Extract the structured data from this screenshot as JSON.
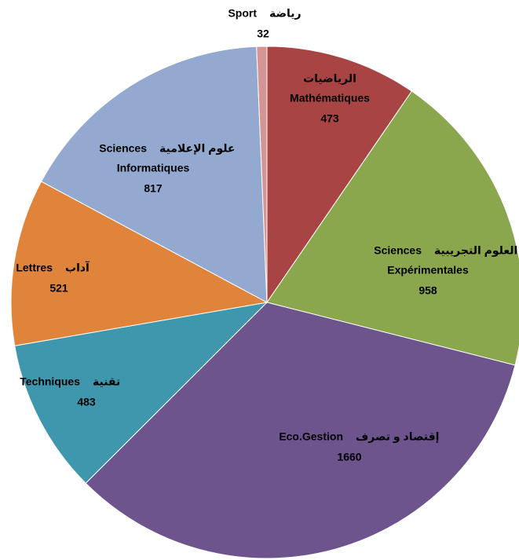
{
  "chart_data": {
    "type": "pie",
    "labels": [
      {
        "arabic": "الرياضيات",
        "french": [
          "Mathématiques"
        ]
      },
      {
        "arabic": "العلوم التجريبية",
        "french": [
          "Sciences",
          "Expérimentales"
        ]
      },
      {
        "arabic": "إقتصاد و تصرف",
        "french": [
          "Eco.Gestion"
        ]
      },
      {
        "arabic": "تقنية",
        "french": [
          "Techniques"
        ]
      },
      {
        "arabic": "آداب",
        "french": [
          "Lettres"
        ]
      },
      {
        "arabic": "علوم الإعلامية",
        "french": [
          "Sciences",
          "Informatiques"
        ]
      },
      {
        "arabic": "رياضة",
        "french": [
          "Sport"
        ]
      }
    ],
    "values": [
      473,
      958,
      1660,
      483,
      521,
      817,
      32
    ],
    "colors": [
      "#a84443",
      "#8aa74e",
      "#6e548d",
      "#3e97ad",
      "#e0843b",
      "#93a9d0",
      "#d69595"
    ]
  }
}
